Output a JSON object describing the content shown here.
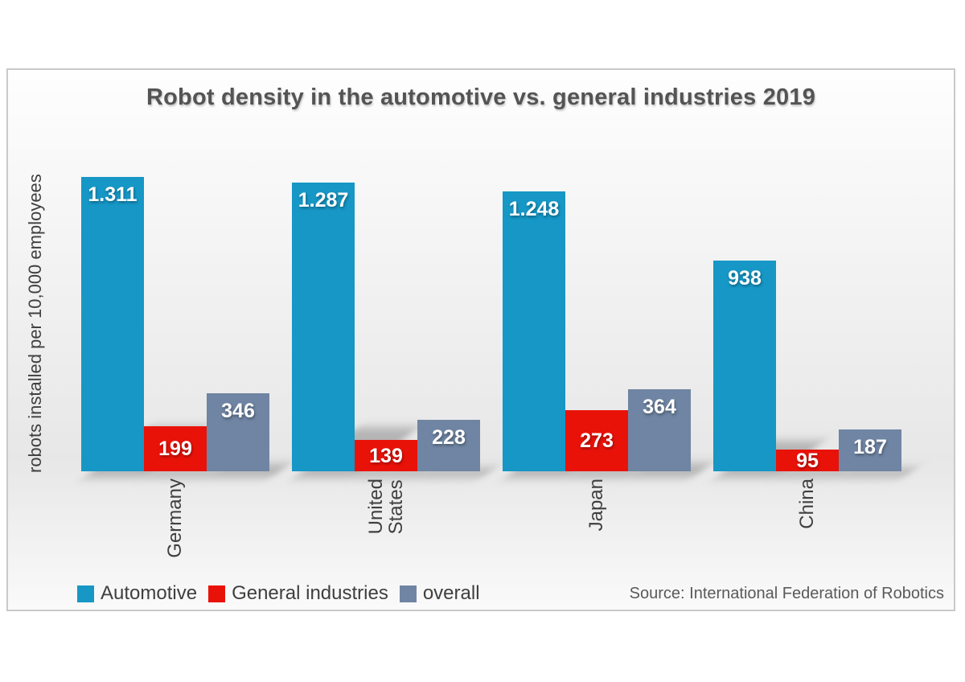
{
  "chart_data": {
    "type": "bar",
    "title": "Robot density in the automotive vs. general industries 2019",
    "ylabel": "robots installed per 10,000 employees",
    "source": "Source: International Federation of Robotics",
    "categories": [
      "Germany",
      "United\nStates",
      "Japan",
      "China"
    ],
    "series": [
      {
        "name": "Automotive",
        "color": "#1697c6",
        "values": [
          1311,
          1287,
          1248,
          938
        ],
        "labels": [
          "1.311",
          "1.287",
          "1.248",
          "938"
        ]
      },
      {
        "name": "General industries",
        "color": "#e91209",
        "values": [
          199,
          139,
          273,
          95
        ],
        "labels": [
          "199",
          "139",
          "273",
          "95"
        ]
      },
      {
        "name": "overall",
        "color": "#6f85a3",
        "values": [
          346,
          228,
          364,
          187
        ],
        "labels": [
          "346",
          "228",
          "364",
          "187"
        ]
      }
    ],
    "ylim": [
      0,
      1400
    ],
    "grid": false,
    "legend_position": "bottom-left",
    "colors": {
      "title_text": "#545454",
      "axis_text": "#3f3f3f",
      "source_text": "#5a5a5a",
      "panel_border": "#c9c9c9"
    }
  }
}
